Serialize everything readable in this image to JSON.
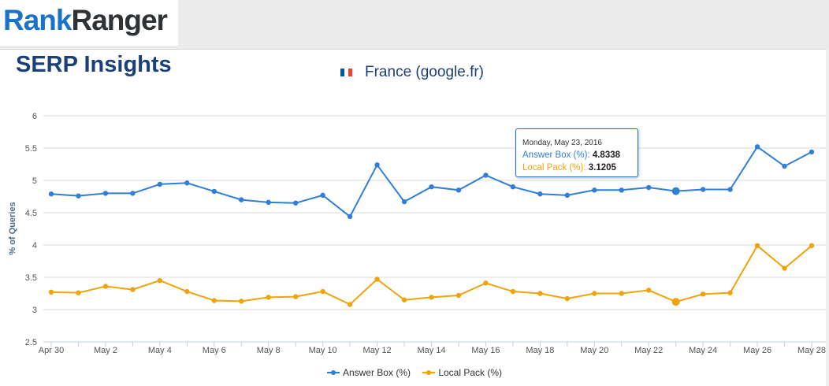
{
  "header": {
    "logo_part1": "Rank",
    "logo_part2": "Ranger",
    "page_title": "SERP Insights",
    "country_label": "France (google.fr)"
  },
  "colors": {
    "answer_box": "#2f7ed8",
    "local_pack": "#f0a30a",
    "title": "#1d3f77",
    "flag": [
      "#0055a4",
      "#ffffff",
      "#ef4135"
    ]
  },
  "tooltip": {
    "date": "Monday, May 23, 2016",
    "series1_label": "Answer Box (%): ",
    "series1_value": "4.8338",
    "series2_label": "Local Pack (%): ",
    "series2_value": "3.1205"
  },
  "chart_data": {
    "type": "line",
    "ylabel": "% of Queries",
    "ylim": [
      2.5,
      6
    ],
    "yticks": [
      "2.5",
      "3",
      "3.5",
      "4",
      "4.5",
      "5",
      "5.5",
      "6"
    ],
    "x": [
      "Apr 30",
      "May 1",
      "May 2",
      "May 3",
      "May 4",
      "May 5",
      "May 6",
      "May 7",
      "May 8",
      "May 9",
      "May 10",
      "May 11",
      "May 12",
      "May 13",
      "May 14",
      "May 15",
      "May 16",
      "May 17",
      "May 18",
      "May 19",
      "May 20",
      "May 21",
      "May 22",
      "May 23",
      "May 24",
      "May 25",
      "May 26",
      "May 27",
      "May 28"
    ],
    "xtick_labels": [
      "Apr 30",
      "May 2",
      "May 4",
      "May 6",
      "May 8",
      "May 10",
      "May 12",
      "May 14",
      "May 16",
      "May 18",
      "May 20",
      "May 22",
      "May 24",
      "May 26",
      "May 28"
    ],
    "series": [
      {
        "name": "Answer Box (%)",
        "values": [
          4.79,
          4.76,
          4.8,
          4.8,
          4.94,
          4.96,
          4.83,
          4.7,
          4.66,
          4.65,
          4.77,
          4.44,
          5.24,
          4.67,
          4.9,
          4.85,
          5.08,
          4.9,
          4.79,
          4.77,
          4.85,
          4.85,
          4.89,
          4.8338,
          4.86,
          4.86,
          5.52,
          5.22,
          5.44
        ]
      },
      {
        "name": "Local Pack (%)",
        "values": [
          3.27,
          3.26,
          3.36,
          3.31,
          3.45,
          3.28,
          3.14,
          3.13,
          3.19,
          3.2,
          3.28,
          3.08,
          3.47,
          3.15,
          3.19,
          3.22,
          3.41,
          3.28,
          3.25,
          3.17,
          3.25,
          3.25,
          3.3,
          3.1205,
          3.24,
          3.26,
          3.99,
          3.64,
          3.99
        ]
      }
    ],
    "highlight_index": 23,
    "grid": true,
    "legend_position": "bottom-center"
  }
}
